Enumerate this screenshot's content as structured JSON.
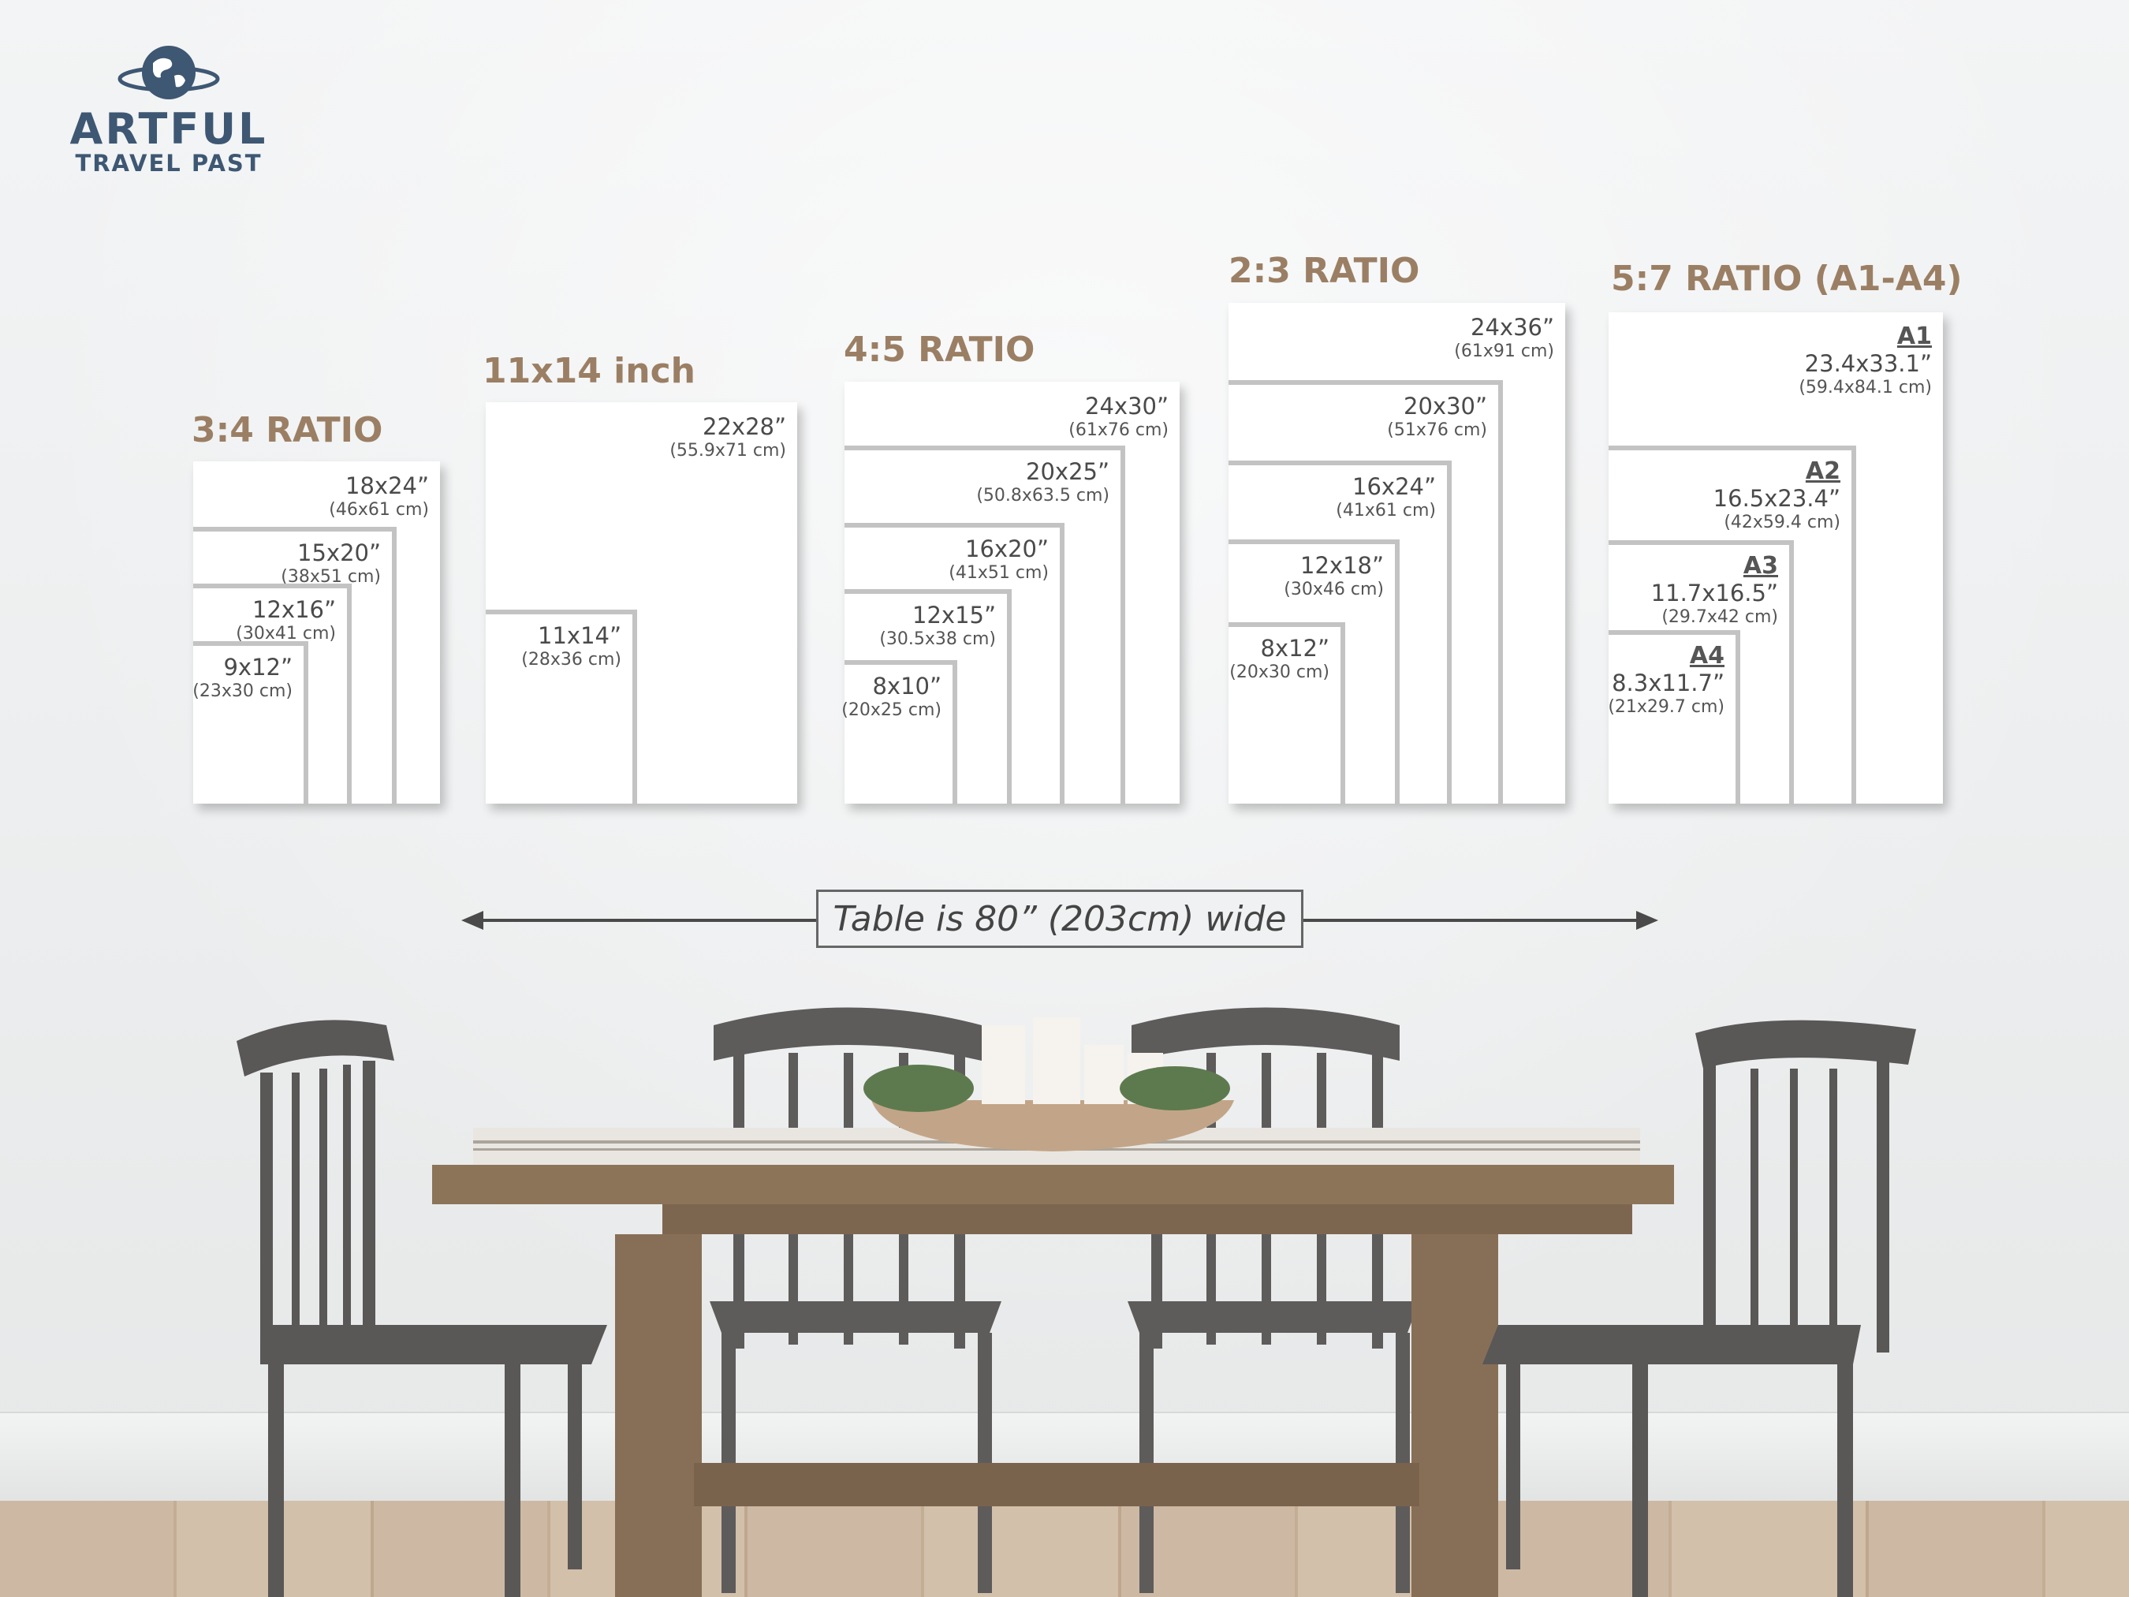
{
  "logo": {
    "brand": "ARTFUL",
    "sub": "TRAVEL PAST",
    "icon": "globe-icon",
    "color": "#3e5773"
  },
  "title_color": "#9b7f64",
  "groups": [
    {
      "title": "3:4 RATIO",
      "sizes": [
        {
          "inches": "18x24”",
          "cm": "(46x61 cm)"
        },
        {
          "inches": "15x20”",
          "cm": "(38x51 cm)"
        },
        {
          "inches": "12x16”",
          "cm": "(30x41 cm)"
        },
        {
          "inches": "9x12”",
          "cm": "(23x30 cm)"
        }
      ]
    },
    {
      "title": "11x14 inch",
      "sizes": [
        {
          "inches": "22x28”",
          "cm": "(55.9x71 cm)"
        },
        {
          "inches": "11x14”",
          "cm": "(28x36 cm)"
        }
      ]
    },
    {
      "title": "4:5 RATIO",
      "sizes": [
        {
          "inches": "24x30”",
          "cm": "(61x76 cm)"
        },
        {
          "inches": "20x25”",
          "cm": "(50.8x63.5 cm)"
        },
        {
          "inches": "16x20”",
          "cm": "(41x51 cm)"
        },
        {
          "inches": "12x15”",
          "cm": "(30.5x38 cm)"
        },
        {
          "inches": "8x10”",
          "cm": "(20x25 cm)"
        }
      ]
    },
    {
      "title": "2:3 RATIO",
      "sizes": [
        {
          "inches": "24x36”",
          "cm": "(61x91 cm)"
        },
        {
          "inches": "20x30”",
          "cm": "(51x76 cm)"
        },
        {
          "inches": "16x24”",
          "cm": "(41x61 cm)"
        },
        {
          "inches": "12x18”",
          "cm": "(30x46 cm)"
        },
        {
          "inches": "8x12”",
          "cm": "(20x30 cm)"
        }
      ]
    },
    {
      "title": "5:7 RATIO (A1-A4)",
      "sizes": [
        {
          "iso": "A1",
          "inches": "23.4x33.1”",
          "cm": "(59.4x84.1 cm)"
        },
        {
          "iso": "A2",
          "inches": "16.5x23.4”",
          "cm": "(42x59.4 cm)"
        },
        {
          "iso": "A3",
          "inches": "11.7x16.5”",
          "cm": "(29.7x42 cm)"
        },
        {
          "iso": "A4",
          "inches": "8.3x11.7”",
          "cm": "(21x29.7 cm)"
        }
      ]
    }
  ],
  "measure": {
    "label": "Table is 80” (203cm) wide"
  }
}
